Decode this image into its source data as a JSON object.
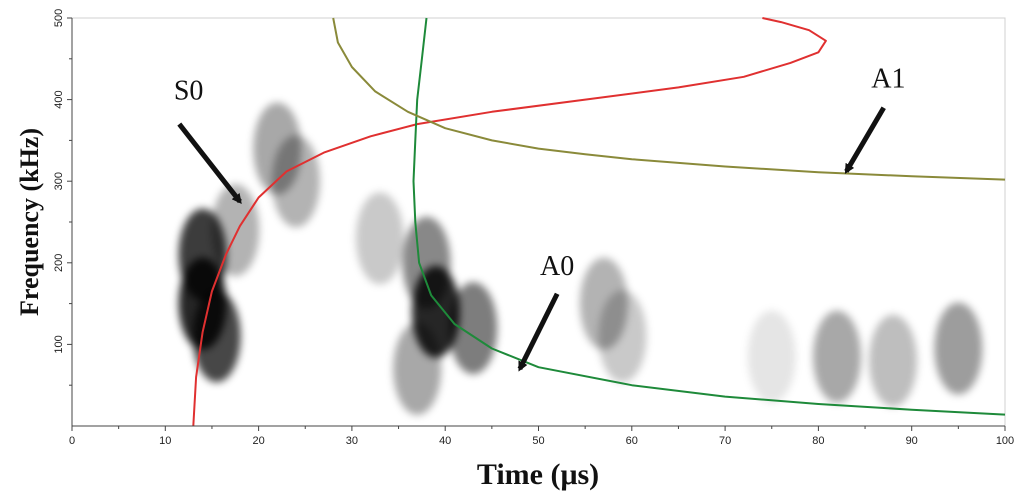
{
  "chart_data": {
    "type": "line",
    "title": "",
    "xlabel": "Time (μs)",
    "ylabel": "Frequency (kHz)",
    "xlim": [
      0,
      100
    ],
    "ylim": [
      0,
      500
    ],
    "xticks": [
      0,
      10,
      20,
      30,
      40,
      50,
      60,
      70,
      80,
      90,
      100
    ],
    "yticks": [
      100,
      200,
      300,
      400,
      500
    ],
    "grid": false,
    "colors": {
      "S0": "#e03030",
      "A0": "#1e8a3a",
      "A1": "#8a8a3a",
      "spectrogram": "#000000"
    },
    "series": [
      {
        "name": "S0",
        "x": [
          13.0,
          13.3,
          14.0,
          15.0,
          16.5,
          18.0,
          20.0,
          23.0,
          27.0,
          32.0,
          37.0,
          45.0,
          55.0,
          65.0,
          72.0,
          77.0,
          80.0,
          80.8,
          79.0,
          76.0,
          74.0
        ],
        "y": [
          0,
          60,
          115,
          165,
          210,
          245,
          280,
          312,
          335,
          355,
          370,
          385,
          400,
          415,
          428,
          445,
          458,
          472,
          485,
          495,
          500
        ]
      },
      {
        "name": "A0",
        "x": [
          38.0,
          37.5,
          37.0,
          36.8,
          36.6,
          36.8,
          37.2,
          38.5,
          41.0,
          45.0,
          50.0,
          60.0,
          70.0,
          80.0,
          90.0,
          100.0
        ],
        "y": [
          500,
          450,
          400,
          350,
          300,
          250,
          200,
          160,
          125,
          95,
          72,
          50,
          36,
          27,
          20,
          14
        ]
      },
      {
        "name": "A1",
        "x": [
          28.0,
          28.5,
          30.0,
          32.5,
          36.0,
          40.0,
          45.0,
          50.0,
          55.0,
          60.0,
          70.0,
          80.0,
          90.0,
          100.0
        ],
        "y": [
          500,
          470,
          440,
          410,
          385,
          365,
          350,
          340,
          333,
          327,
          318,
          311,
          306,
          302
        ]
      }
    ],
    "spectrogram_blobs": [
      {
        "x": 14.0,
        "y": 210,
        "intensity": 0.9
      },
      {
        "x": 14.0,
        "y": 150,
        "intensity": 1.0
      },
      {
        "x": 15.5,
        "y": 110,
        "intensity": 0.85
      },
      {
        "x": 17.5,
        "y": 240,
        "intensity": 0.35
      },
      {
        "x": 22.0,
        "y": 340,
        "intensity": 0.4
      },
      {
        "x": 24.0,
        "y": 300,
        "intensity": 0.35
      },
      {
        "x": 33.0,
        "y": 230,
        "intensity": 0.25
      },
      {
        "x": 39.0,
        "y": 140,
        "intensity": 1.0
      },
      {
        "x": 38.0,
        "y": 200,
        "intensity": 0.55
      },
      {
        "x": 43.0,
        "y": 120,
        "intensity": 0.6
      },
      {
        "x": 37.0,
        "y": 70,
        "intensity": 0.4
      },
      {
        "x": 57.0,
        "y": 150,
        "intensity": 0.35
      },
      {
        "x": 59.0,
        "y": 110,
        "intensity": 0.25
      },
      {
        "x": 75.0,
        "y": 85,
        "intensity": 0.12
      },
      {
        "x": 82.0,
        "y": 85,
        "intensity": 0.4
      },
      {
        "x": 88.0,
        "y": 80,
        "intensity": 0.3
      },
      {
        "x": 95.0,
        "y": 95,
        "intensity": 0.45
      }
    ],
    "annotations": [
      {
        "text": "S0",
        "series": "S0",
        "x": 12.5,
        "y": 400,
        "arrow_from": [
          11.5,
          370
        ],
        "arrow_to": [
          18.0,
          275
        ]
      },
      {
        "text": "A1",
        "series": "A1",
        "x": 87.5,
        "y": 415,
        "arrow_from": [
          87.0,
          390
        ],
        "arrow_to": [
          83.0,
          312
        ]
      },
      {
        "text": "A0",
        "series": "A0",
        "x": 52.0,
        "y": 185,
        "arrow_from": [
          52.0,
          162
        ],
        "arrow_to": [
          48.0,
          70
        ]
      }
    ]
  }
}
